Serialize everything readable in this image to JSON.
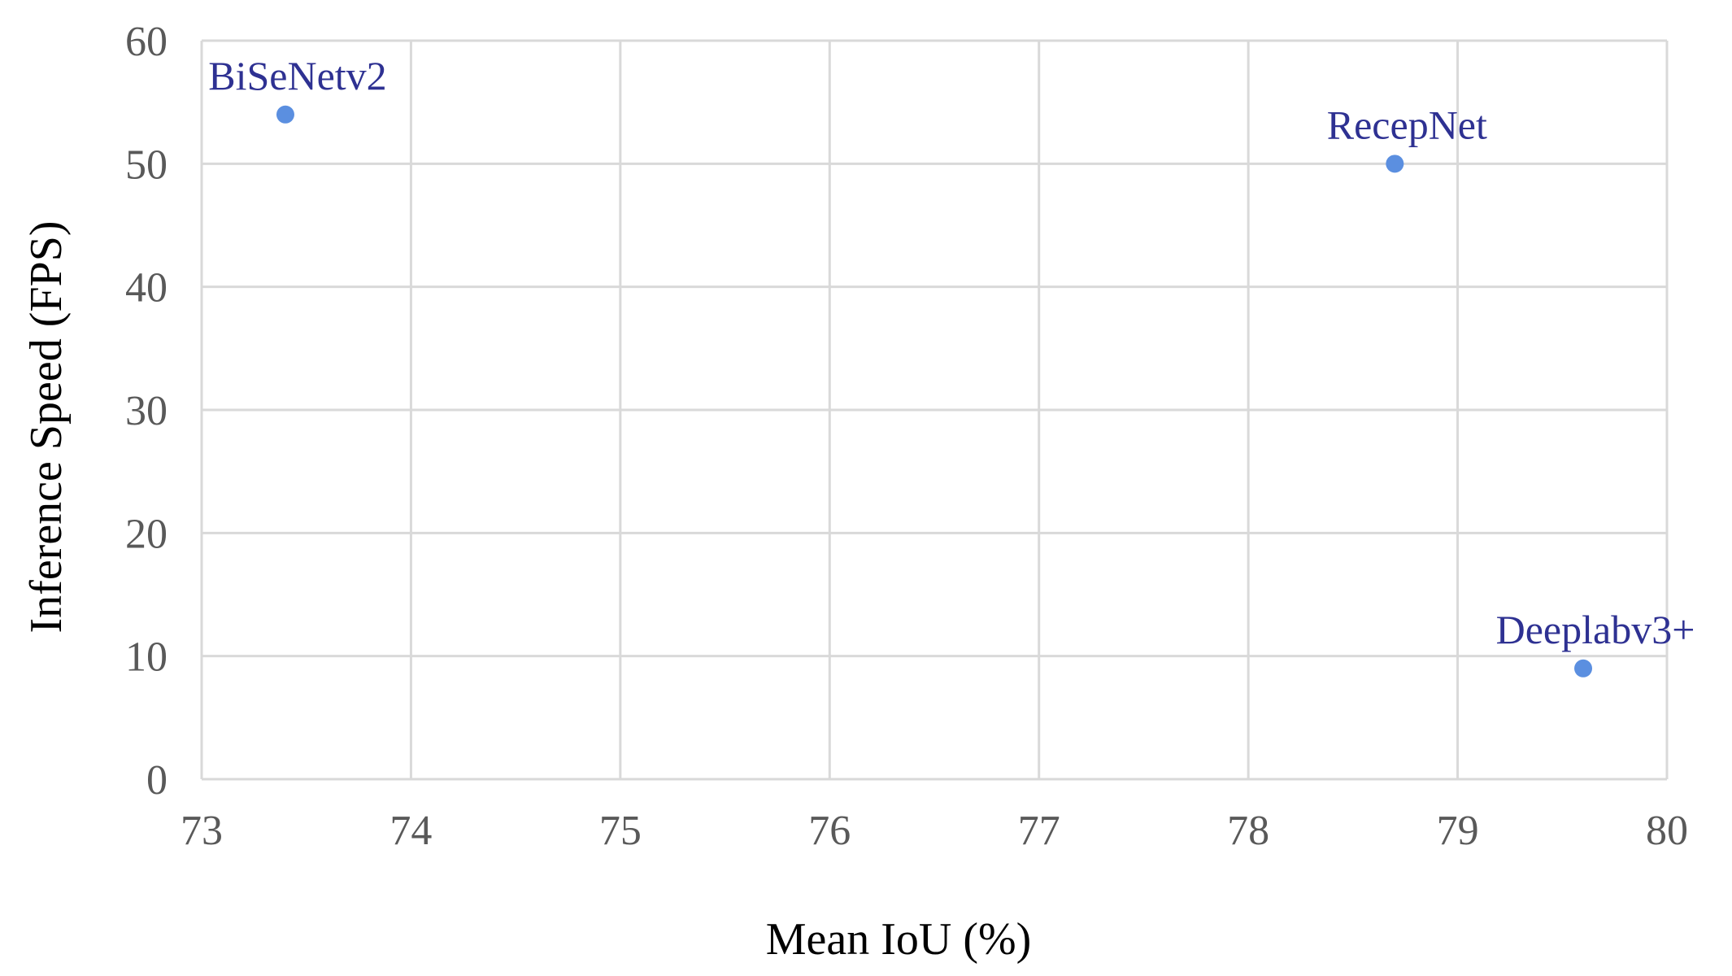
{
  "chart_data": {
    "type": "scatter",
    "title": "",
    "xlabel": "Mean IoU (%)",
    "ylabel": "Inference Speed (FPS)",
    "xlim": [
      73,
      80
    ],
    "ylim": [
      0,
      60
    ],
    "xticks": [
      73,
      74,
      75,
      76,
      77,
      78,
      79,
      80
    ],
    "yticks": [
      0,
      10,
      20,
      30,
      40,
      50,
      60
    ],
    "grid": true,
    "points": [
      {
        "label": "BiSeNetv2",
        "x": 73.4,
        "y": 54
      },
      {
        "label": "RecepNet",
        "x": 78.7,
        "y": 50
      },
      {
        "label": "Deeplabv3+",
        "x": 79.6,
        "y": 9
      }
    ],
    "colors": {
      "marker": "#5b8fe0",
      "label": "#2e3192",
      "grid": "#d9d9d9",
      "axis_text": "#595959"
    }
  }
}
